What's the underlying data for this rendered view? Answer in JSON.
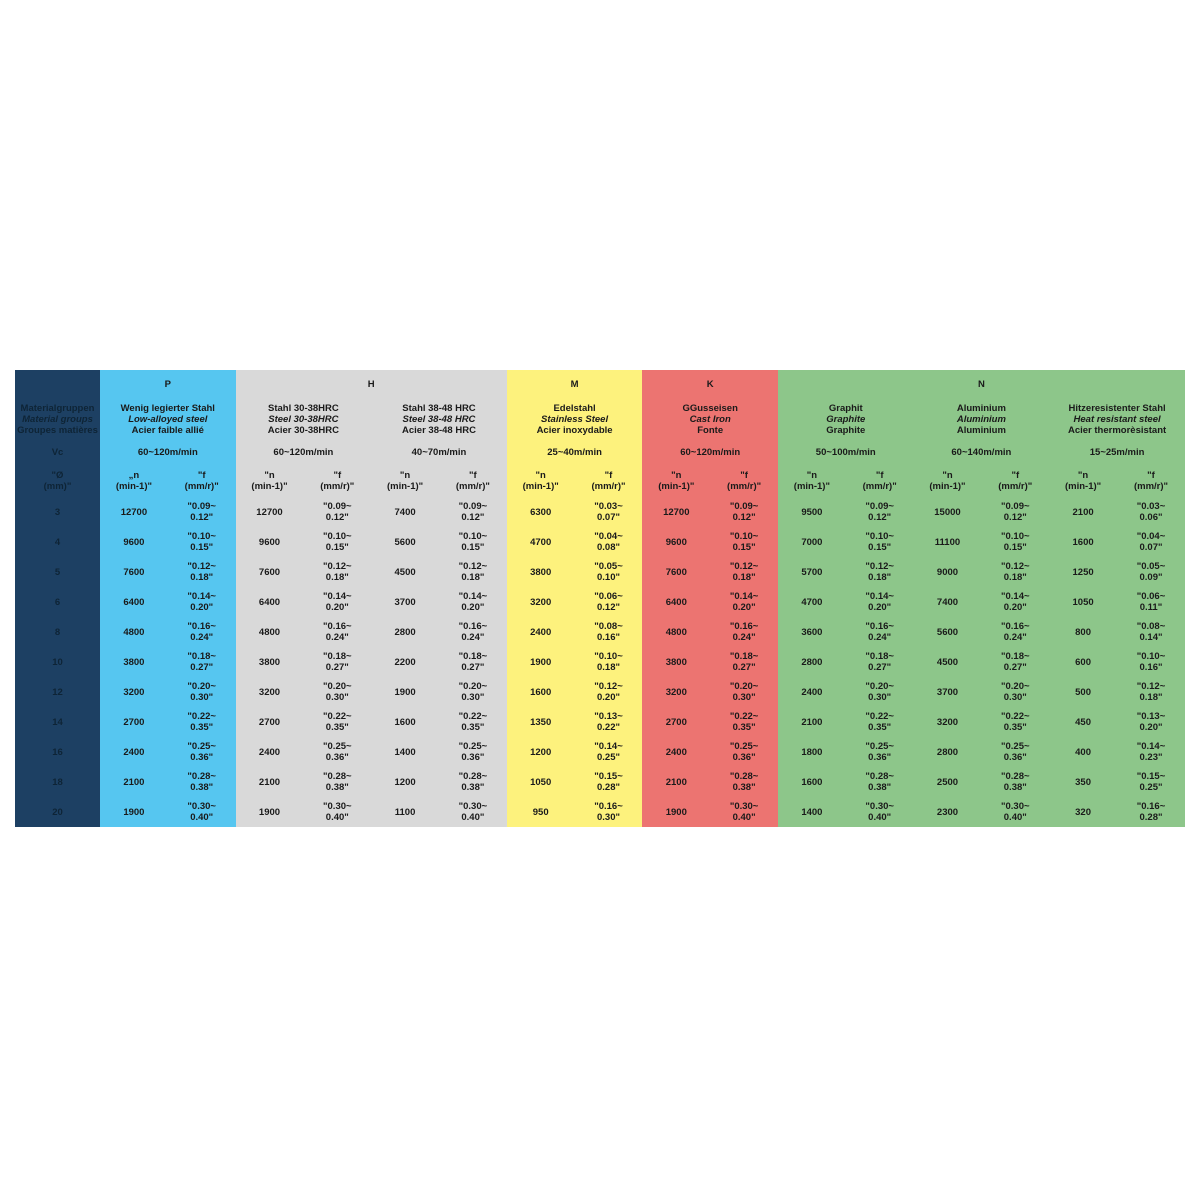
{
  "colors": {
    "left": "#1d4063",
    "P": "#56c6f0",
    "H": "#d9d9d9",
    "M": "#fdf27d",
    "K": "#ec7471",
    "N": "#8dc68a"
  },
  "left": {
    "groups_de": "Materialgruppen",
    "groups_en": "Material groups",
    "groups_fr": "Groupes matières",
    "vc": "Vc",
    "diameter": "\"Ø\n(mm)\""
  },
  "iso_groups": [
    {
      "code": "P",
      "span": 1
    },
    {
      "code": "H",
      "span": 2
    },
    {
      "code": "M",
      "span": 1
    },
    {
      "code": "K",
      "span": 1
    },
    {
      "code": "N",
      "span": 3
    }
  ],
  "diameters": [
    "3",
    "4",
    "5",
    "6",
    "8",
    "10",
    "12",
    "14",
    "16",
    "18",
    "20"
  ],
  "materials": [
    {
      "iso": "P",
      "de": "Wenig legierter Stahl",
      "en": "Low-alloyed steel",
      "fr": "Acier faible allié",
      "vc": "60~120m/min",
      "n_header": "„n\n(min-1)\"",
      "f_header": "\"f\n(mm/r)\"",
      "n": [
        "12700",
        "9600",
        "7600",
        "6400",
        "4800",
        "3800",
        "3200",
        "2700",
        "2400",
        "2100",
        "1900"
      ],
      "f": [
        "\"0.09~\n0.12\"",
        "\"0.10~\n0.15\"",
        "\"0.12~\n0.18\"",
        "\"0.14~\n0.20\"",
        "\"0.16~\n0.24\"",
        "\"0.18~\n0.27\"",
        "\"0.20~\n0.30\"",
        "\"0.22~\n0.35\"",
        "\"0.25~\n0.36\"",
        "\"0.28~\n0.38\"",
        "\"0.30~\n0.40\""
      ]
    },
    {
      "iso": "H",
      "de": "Stahl 30-38HRC",
      "en": "Steel 30-38HRC",
      "fr": "Acier 30-38HRC",
      "vc": "60~120m/min",
      "n_header": "\"n\n(min-1)\"",
      "f_header": "\"f\n(mm/r)\"",
      "n": [
        "12700",
        "9600",
        "7600",
        "6400",
        "4800",
        "3800",
        "3200",
        "2700",
        "2400",
        "2100",
        "1900"
      ],
      "f": [
        "\"0.09~\n0.12\"",
        "\"0.10~\n0.15\"",
        "\"0.12~\n0.18\"",
        "\"0.14~\n0.20\"",
        "\"0.16~\n0.24\"",
        "\"0.18~\n0.27\"",
        "\"0.20~\n0.30\"",
        "\"0.22~\n0.35\"",
        "\"0.25~\n0.36\"",
        "\"0.28~\n0.38\"",
        "\"0.30~\n0.40\""
      ]
    },
    {
      "iso": "H",
      "de": "Stahl 38-48 HRC",
      "en": "Steel 38-48 HRC",
      "fr": "Acier 38-48 HRC",
      "vc": "40~70m/min",
      "n_header": "\"n\n(min-1)\"",
      "f_header": "\"f\n(mm/r)\"",
      "n": [
        "7400",
        "5600",
        "4500",
        "3700",
        "2800",
        "2200",
        "1900",
        "1600",
        "1400",
        "1200",
        "1100"
      ],
      "f": [
        "\"0.09~\n0.12\"",
        "\"0.10~\n0.15\"",
        "\"0.12~\n0.18\"",
        "\"0.14~\n0.20\"",
        "\"0.16~\n0.24\"",
        "\"0.18~\n0.27\"",
        "\"0.20~\n0.30\"",
        "\"0.22~\n0.35\"",
        "\"0.25~\n0.36\"",
        "\"0.28~\n0.38\"",
        "\"0.30~\n0.40\""
      ]
    },
    {
      "iso": "M",
      "de": "Edelstahl",
      "en": "Stainless Steel",
      "fr": "Acier inoxydable",
      "vc": "25~40m/min",
      "n_header": "\"n\n(min-1)\"",
      "f_header": "\"f\n(mm/r)\"",
      "n": [
        "6300",
        "4700",
        "3800",
        "3200",
        "2400",
        "1900",
        "1600",
        "1350",
        "1200",
        "1050",
        "950"
      ],
      "f": [
        "\"0.03~\n0.07\"",
        "\"0.04~\n0.08\"",
        "\"0.05~\n0.10\"",
        "\"0.06~\n0.12\"",
        "\"0.08~\n0.16\"",
        "\"0.10~\n0.18\"",
        "\"0.12~\n0.20\"",
        "\"0.13~\n0.22\"",
        "\"0.14~\n0.25\"",
        "\"0.15~\n0.28\"",
        "\"0.16~\n0.30\""
      ]
    },
    {
      "iso": "K",
      "de": "GGusseisen",
      "en": "Cast Iron",
      "fr": "Fonte",
      "vc": "60~120m/min",
      "n_header": "\"n\n(min-1)\"",
      "f_header": "\"f\n(mm/r)\"",
      "n": [
        "12700",
        "9600",
        "7600",
        "6400",
        "4800",
        "3800",
        "3200",
        "2700",
        "2400",
        "2100",
        "1900"
      ],
      "f": [
        "\"0.09~\n0.12\"",
        "\"0.10~\n0.15\"",
        "\"0.12~\n0.18\"",
        "\"0.14~\n0.20\"",
        "\"0.16~\n0.24\"",
        "\"0.18~\n0.27\"",
        "\"0.20~\n0.30\"",
        "\"0.22~\n0.35\"",
        "\"0.25~\n0.36\"",
        "\"0.28~\n0.38\"",
        "\"0.30~\n0.40\""
      ]
    },
    {
      "iso": "N",
      "de": "Graphit",
      "en": "Graphite",
      "fr": "Graphite",
      "vc": "50~100m/min",
      "n_header": "\"n\n(min-1)\"",
      "f_header": "\"f\n(mm/r)\"",
      "n": [
        "9500",
        "7000",
        "5700",
        "4700",
        "3600",
        "2800",
        "2400",
        "2100",
        "1800",
        "1600",
        "1400"
      ],
      "f": [
        "\"0.09~\n0.12\"",
        "\"0.10~\n0.15\"",
        "\"0.12~\n0.18\"",
        "\"0.14~\n0.20\"",
        "\"0.16~\n0.24\"",
        "\"0.18~\n0.27\"",
        "\"0.20~\n0.30\"",
        "\"0.22~\n0.35\"",
        "\"0.25~\n0.36\"",
        "\"0.28~\n0.38\"",
        "\"0.30~\n0.40\""
      ]
    },
    {
      "iso": "N",
      "de": "Aluminium",
      "en": "Aluminium",
      "fr": "Aluminium",
      "vc": "60~140m/min",
      "n_header": "\"n\n(min-1)\"",
      "f_header": "\"f\n(mm/r)\"",
      "n": [
        "15000",
        "11100",
        "9000",
        "7400",
        "5600",
        "4500",
        "3700",
        "3200",
        "2800",
        "2500",
        "2300"
      ],
      "f": [
        "\"0.09~\n0.12\"",
        "\"0.10~\n0.15\"",
        "\"0.12~\n0.18\"",
        "\"0.14~\n0.20\"",
        "\"0.16~\n0.24\"",
        "\"0.18~\n0.27\"",
        "\"0.20~\n0.30\"",
        "\"0.22~\n0.35\"",
        "\"0.25~\n0.36\"",
        "\"0.28~\n0.38\"",
        "\"0.30~\n0.40\""
      ]
    },
    {
      "iso": "N",
      "de": "Hitzeresistenter Stahl",
      "en": "Heat resistant steel",
      "fr": "Acier thermorèsistant",
      "vc": "15~25m/min",
      "n_header": "\"n\n(min-1)\"",
      "f_header": "\"f\n(mm/r)\"",
      "n": [
        "2100",
        "1600",
        "1250",
        "1050",
        "800",
        "600",
        "500",
        "450",
        "400",
        "350",
        "320"
      ],
      "f": [
        "\"0.03~\n0.06\"",
        "\"0.04~\n0.07\"",
        "\"0.05~\n0.09\"",
        "\"0.06~\n0.11\"",
        "\"0.08~\n0.14\"",
        "\"0.10~\n0.16\"",
        "\"0.12~\n0.18\"",
        "\"0.13~\n0.20\"",
        "\"0.14~\n0.23\"",
        "\"0.15~\n0.25\"",
        "\"0.16~\n0.28\""
      ]
    }
  ]
}
